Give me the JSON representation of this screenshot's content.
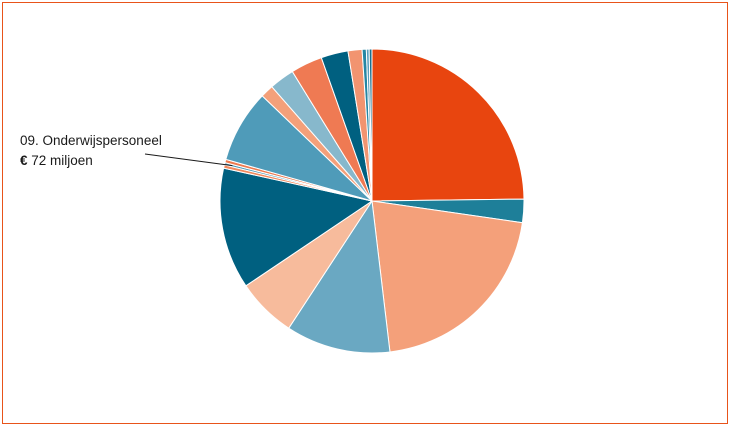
{
  "chart_data": {
    "type": "pie",
    "title": "",
    "slices": [
      {
        "value": 25.0,
        "color": "#e8450f"
      },
      {
        "value": 2.5,
        "color": "#1e7f99"
      },
      {
        "value": 21.0,
        "color": "#f4a07a"
      },
      {
        "value": 11.2,
        "color": "#6aa8c2"
      },
      {
        "value": 6.4,
        "color": "#f7bb9c"
      },
      {
        "value": 13.0,
        "color": "#006080"
      },
      {
        "value": 0.35,
        "color": "#f0885c"
      },
      {
        "value": 0.25,
        "color": "#4a96b5"
      },
      {
        "value": 0.35,
        "color": "#ee7a4f"
      },
      {
        "value": 7.8,
        "color": "#4f9bb9"
      },
      {
        "value": 1.4,
        "color": "#f4a07a"
      },
      {
        "value": 2.7,
        "color": "#87b8cc"
      },
      {
        "value": 3.4,
        "color": "#ef7a53"
      },
      {
        "value": 2.9,
        "color": "#006080"
      },
      {
        "value": 1.5,
        "color": "#f29470"
      },
      {
        "value": 0.45,
        "color": "#2686a3"
      },
      {
        "value": 0.3,
        "color": "#5aa0bd"
      },
      {
        "value": 0.3,
        "color": "#1b6f8c"
      }
    ],
    "annotation": {
      "slice_index": 7,
      "line1": "09. Onderwijspersoneel",
      "currency": "€",
      "line2": " 72 miljoen"
    }
  },
  "colors": {
    "border": "#e8531a",
    "leader_line": "#1a1a1a"
  }
}
